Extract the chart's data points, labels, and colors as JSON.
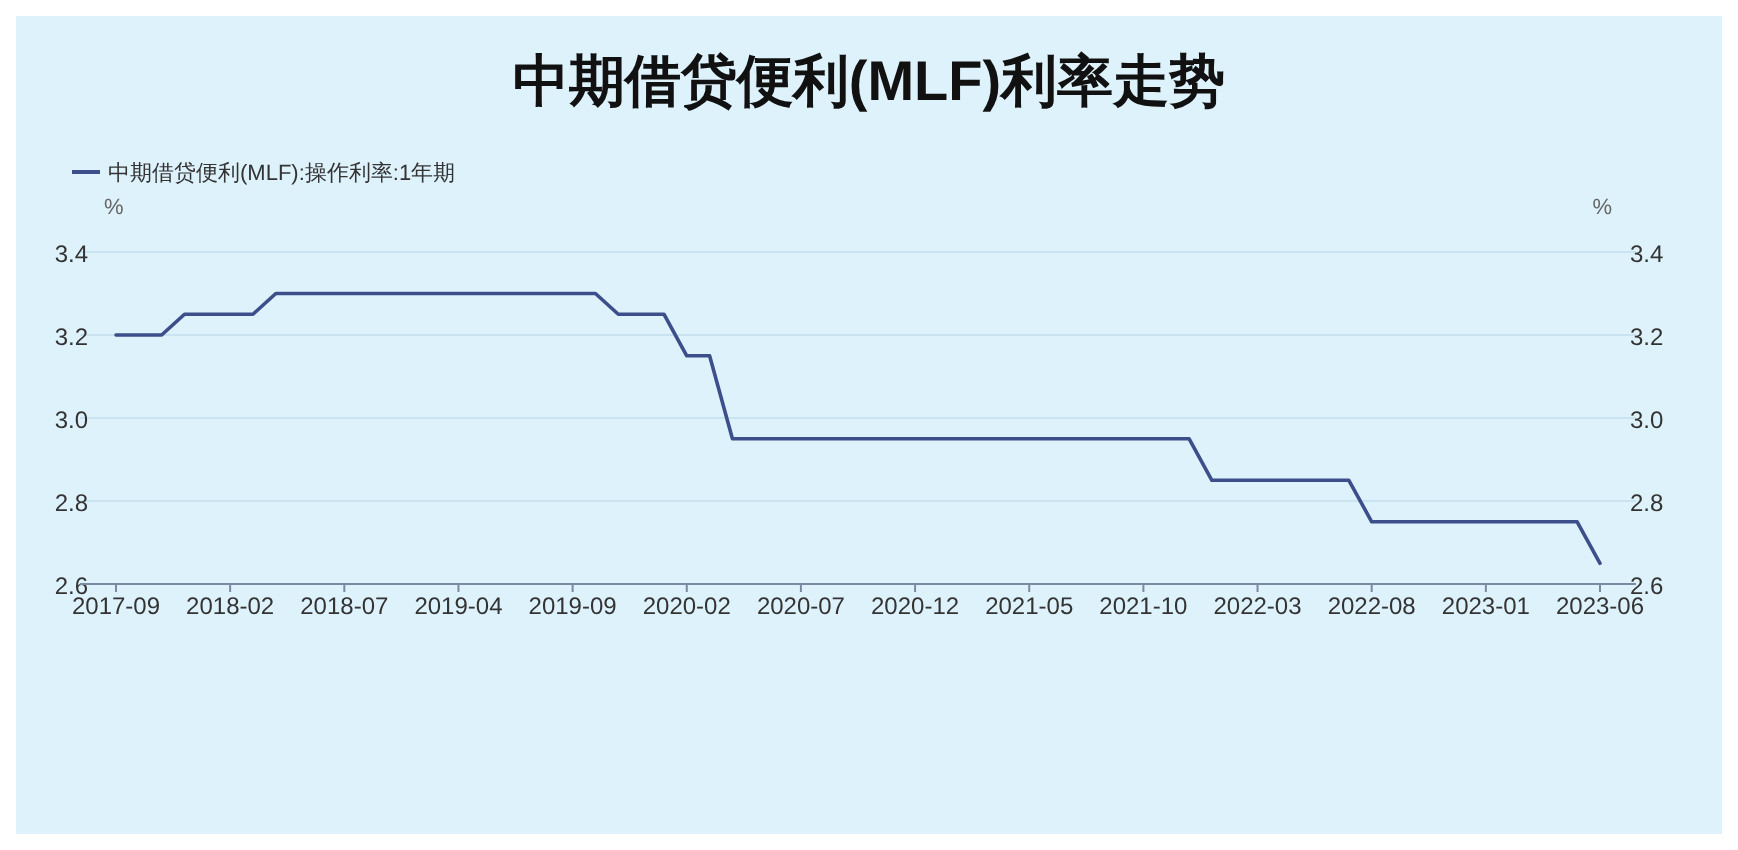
{
  "chart_data": {
    "type": "line",
    "title": "中期借贷便利(MLF)利率走势",
    "ylabel": "%",
    "y2label": "%",
    "categories": [
      "2017-09",
      null,
      null,
      null,
      null,
      "2018-02",
      null,
      null,
      null,
      null,
      "2018-07",
      null,
      null,
      null,
      null,
      "2019-04",
      null,
      null,
      null,
      null,
      "2019-09",
      null,
      null,
      null,
      null,
      "2020-02",
      null,
      null,
      null,
      null,
      "2020-07",
      null,
      null,
      null,
      null,
      "2020-12",
      null,
      null,
      null,
      null,
      "2021-05",
      null,
      null,
      null,
      null,
      "2021-10",
      null,
      null,
      null,
      null,
      "2022-03",
      null,
      null,
      null,
      null,
      "2022-08",
      null,
      null,
      null,
      null,
      "2023-01",
      null,
      null,
      null,
      null,
      "2023-06"
    ],
    "series": [
      {
        "name": "中期借贷便利(MLF):操作利率:1年期",
        "color": "#3d4f8a",
        "values": [
          3.2,
          3.2,
          3.2,
          3.25,
          3.25,
          3.25,
          3.25,
          3.3,
          3.3,
          3.3,
          3.3,
          3.3,
          3.3,
          3.3,
          3.3,
          3.3,
          3.3,
          3.3,
          3.3,
          3.3,
          3.3,
          3.3,
          3.25,
          3.25,
          3.25,
          3.15,
          3.15,
          2.95,
          2.95,
          2.95,
          2.95,
          2.95,
          2.95,
          2.95,
          2.95,
          2.95,
          2.95,
          2.95,
          2.95,
          2.95,
          2.95,
          2.95,
          2.95,
          2.95,
          2.95,
          2.95,
          2.95,
          2.95,
          2.85,
          2.85,
          2.85,
          2.85,
          2.85,
          2.85,
          2.85,
          2.75,
          2.75,
          2.75,
          2.75,
          2.75,
          2.75,
          2.75,
          2.75,
          2.75,
          2.75,
          2.65
        ]
      }
    ],
    "ylim": [
      2.6,
      3.4
    ],
    "yticks": [
      2.6,
      2.8,
      {
        "value": 3,
        "label": "3.0"
      },
      3.2,
      3.4
    ],
    "y2lim": [
      2.6,
      3.4
    ],
    "y2ticks": [
      2.6,
      2.8,
      {
        "value": 3,
        "label": "3.0"
      },
      3.2,
      3.4
    ],
    "grid": "y",
    "legend": "top left",
    "marker": "none",
    "line_style": "solid"
  }
}
